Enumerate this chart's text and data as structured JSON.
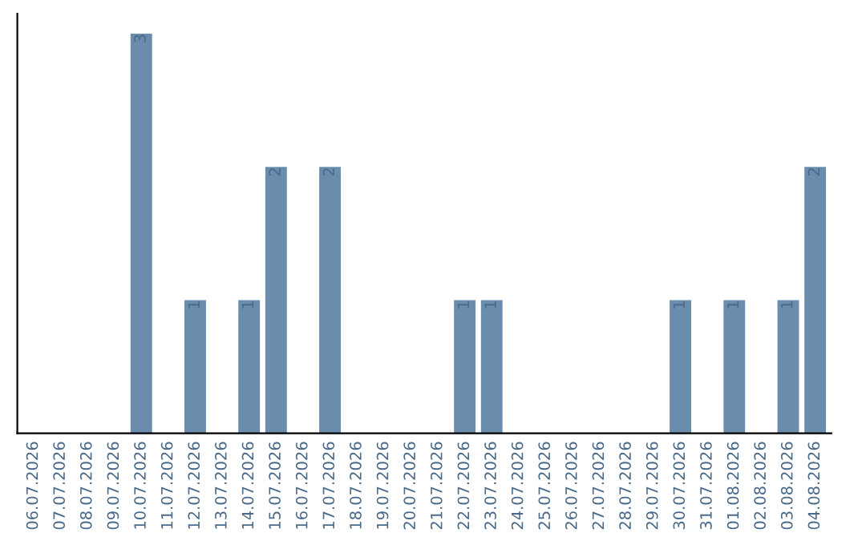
{
  "chart_data": {
    "type": "bar",
    "categories": [
      "06.07.2026",
      "07.07.2026",
      "08.07.2026",
      "09.07.2026",
      "10.07.2026",
      "11.07.2026",
      "12.07.2026",
      "13.07.2026",
      "14.07.2026",
      "15.07.2026",
      "16.07.2026",
      "17.07.2026",
      "18.07.2026",
      "19.07.2026",
      "20.07.2026",
      "21.07.2026",
      "22.07.2026",
      "23.07.2026",
      "24.07.2026",
      "25.07.2026",
      "26.07.2026",
      "27.07.2026",
      "28.07.2026",
      "29.07.2026",
      "30.07.2026",
      "31.07.2026",
      "01.08.2026",
      "02.08.2026",
      "03.08.2026",
      "04.08.2026"
    ],
    "values": [
      0,
      0,
      0,
      0,
      3,
      0,
      1,
      0,
      1,
      2,
      0,
      2,
      0,
      0,
      0,
      0,
      1,
      1,
      0,
      0,
      0,
      0,
      0,
      0,
      1,
      0,
      1,
      0,
      1,
      2
    ],
    "value_labels": [
      null,
      null,
      null,
      null,
      "3",
      null,
      "1",
      null,
      "1",
      "2",
      null,
      "2",
      null,
      null,
      null,
      null,
      "1",
      "1",
      null,
      null,
      null,
      null,
      null,
      null,
      "1",
      null,
      "1",
      null,
      "1",
      "2"
    ],
    "color": "#6a8cad",
    "tick_labels": "x",
    "grid": false,
    "legend": false
  }
}
